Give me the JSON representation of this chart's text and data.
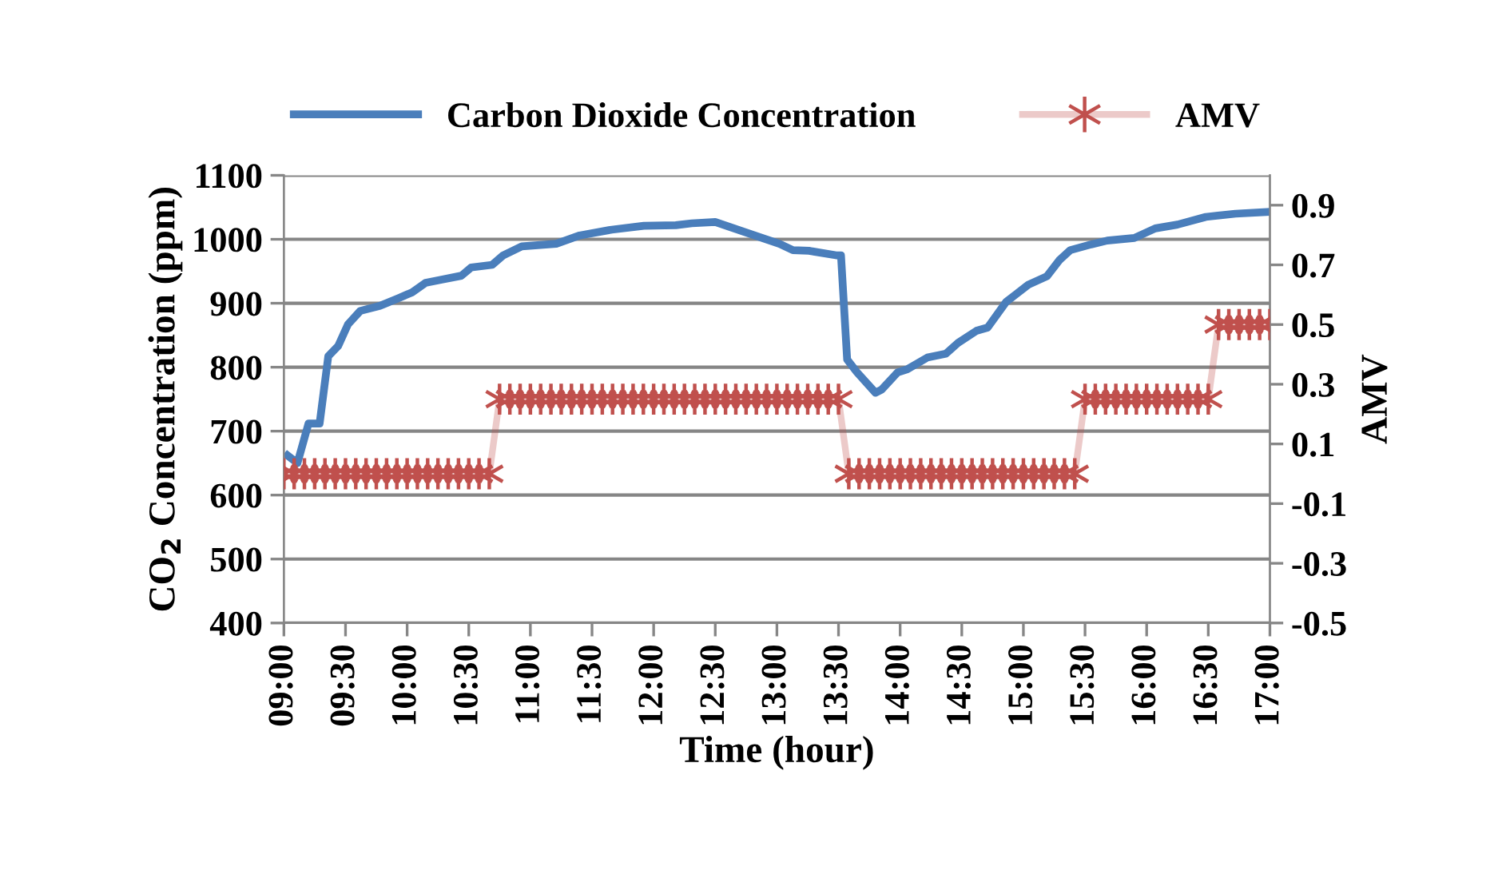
{
  "chart_data": {
    "type": "line",
    "xlabel": "Time (hour)",
    "ylabel": "CO$_{2}$ Concentration (ppm)",
    "y2label": "AMV",
    "xlim": [
      9,
      17
    ],
    "xticks": [
      {
        "value": 9,
        "label": "09:00"
      },
      {
        "value": 9.5,
        "label": "09:30"
      },
      {
        "value": 10,
        "label": "10:00"
      },
      {
        "value": 10.5,
        "label": "10:30"
      },
      {
        "value": 11,
        "label": "11:00"
      },
      {
        "value": 11.5,
        "label": "11:30"
      },
      {
        "value": 12,
        "label": "12:00"
      },
      {
        "value": 12.5,
        "label": "12:30"
      },
      {
        "value": 13,
        "label": "13:00"
      },
      {
        "value": 13.5,
        "label": "13:30"
      },
      {
        "value": 14,
        "label": "14:00"
      },
      {
        "value": 14.5,
        "label": "14:30"
      },
      {
        "value": 15,
        "label": "15:00"
      },
      {
        "value": 15.5,
        "label": "15:30"
      },
      {
        "value": 16,
        "label": "16:00"
      },
      {
        "value": 16.5,
        "label": "16:30"
      },
      {
        "value": 17,
        "label": "17:00"
      }
    ],
    "ylim": [
      400,
      1100
    ],
    "yticks": [
      400,
      500,
      600,
      700,
      800,
      900,
      1000,
      1100
    ],
    "y2lim": [
      -0.5,
      1.0
    ],
    "y2ticks": [
      -0.5,
      -0.3,
      -0.1,
      0.1,
      0.3,
      0.5,
      0.7,
      0.9
    ],
    "grid": "y",
    "legend": "top",
    "series": [
      {
        "name": "Carbon Dioxide Concentration",
        "color": "#4a7ebb",
        "marker": "none",
        "x": [
          9.03,
          9.11,
          9.2,
          9.29,
          9.36,
          9.44,
          9.52,
          9.62,
          9.78,
          9.93,
          10.04,
          10.15,
          10.28,
          10.44,
          10.52,
          10.69,
          10.78,
          10.93,
          11.21,
          11.4,
          11.66,
          11.92,
          12.18,
          12.31,
          12.5,
          12.79,
          13.02,
          13.13,
          13.26,
          13.48,
          13.52,
          13.57,
          13.65,
          13.8,
          13.85,
          13.98,
          14.06,
          14.22,
          14.37,
          14.47,
          14.62,
          14.71,
          14.86,
          15.04,
          15.19,
          15.29,
          15.38,
          15.55,
          15.68,
          15.9,
          16.07,
          16.25,
          16.48,
          16.72,
          17.0
        ],
        "values": [
          662,
          650,
          712,
          712,
          817,
          833,
          867,
          888,
          896,
          908,
          917,
          932,
          937,
          943,
          956,
          960,
          975,
          989,
          993,
          1006,
          1015,
          1021,
          1022,
          1025,
          1027,
          1008,
          993,
          983,
          982,
          975,
          975,
          812,
          792,
          760,
          765,
          792,
          797,
          815,
          821,
          838,
          857,
          862,
          902,
          929,
          942,
          967,
          983,
          992,
          998,
          1002,
          1017,
          1023,
          1035,
          1040,
          1043
        ]
      },
      {
        "name": "AMV",
        "color": "#c0504d",
        "axis": "y2",
        "marker": "cross",
        "x": [
          9,
          9.0833,
          9.1667,
          9.25,
          9.3333,
          9.4167,
          9.5,
          9.5833,
          9.6667,
          9.75,
          9.8333,
          9.9167,
          10,
          10.0833,
          10.1667,
          10.25,
          10.3333,
          10.4167,
          10.5,
          10.5833,
          10.6667,
          10.75,
          10.8333,
          10.9167,
          11,
          11.0833,
          11.1667,
          11.25,
          11.3333,
          11.4167,
          11.5,
          11.5833,
          11.6667,
          11.75,
          11.8333,
          11.9167,
          12,
          12.0833,
          12.1667,
          12.25,
          12.3333,
          12.4167,
          12.5,
          12.5833,
          12.6667,
          12.75,
          12.8333,
          12.9167,
          13,
          13.0833,
          13.1667,
          13.25,
          13.3333,
          13.4167,
          13.5,
          13.5833,
          13.6667,
          13.75,
          13.8333,
          13.9167,
          14,
          14.0833,
          14.1667,
          14.25,
          14.3333,
          14.4167,
          14.5,
          14.5833,
          14.6667,
          14.75,
          14.8333,
          14.9167,
          15,
          15.0833,
          15.1667,
          15.25,
          15.3333,
          15.4167,
          15.5,
          15.5833,
          15.6667,
          15.75,
          15.8333,
          15.9167,
          16,
          16.0833,
          16.1667,
          16.25,
          16.3333,
          16.4167,
          16.5,
          16.5833,
          16.6667,
          16.75,
          16.8333,
          16.9167,
          17
        ],
        "values": [
          0,
          0,
          0,
          0,
          0,
          0,
          0,
          0,
          0,
          0,
          0,
          0,
          0,
          0,
          0,
          0,
          0,
          0,
          0,
          0,
          0,
          0.25,
          0.25,
          0.25,
          0.25,
          0.25,
          0.25,
          0.25,
          0.25,
          0.25,
          0.25,
          0.25,
          0.25,
          0.25,
          0.25,
          0.25,
          0.25,
          0.25,
          0.25,
          0.25,
          0.25,
          0.25,
          0.25,
          0.25,
          0.25,
          0.25,
          0.25,
          0.25,
          0.25,
          0.25,
          0.25,
          0.25,
          0.25,
          0.25,
          0.25,
          0,
          0,
          0,
          0,
          0,
          0,
          0,
          0,
          0,
          0,
          0,
          0,
          0,
          0,
          0,
          0,
          0,
          0,
          0,
          0,
          0,
          0,
          0,
          0.25,
          0.25,
          0.25,
          0.25,
          0.25,
          0.25,
          0.25,
          0.25,
          0.25,
          0.25,
          0.25,
          0.25,
          0.25,
          0.5,
          0.5,
          0.5,
          0.5,
          0.5,
          0.5
        ]
      }
    ]
  }
}
